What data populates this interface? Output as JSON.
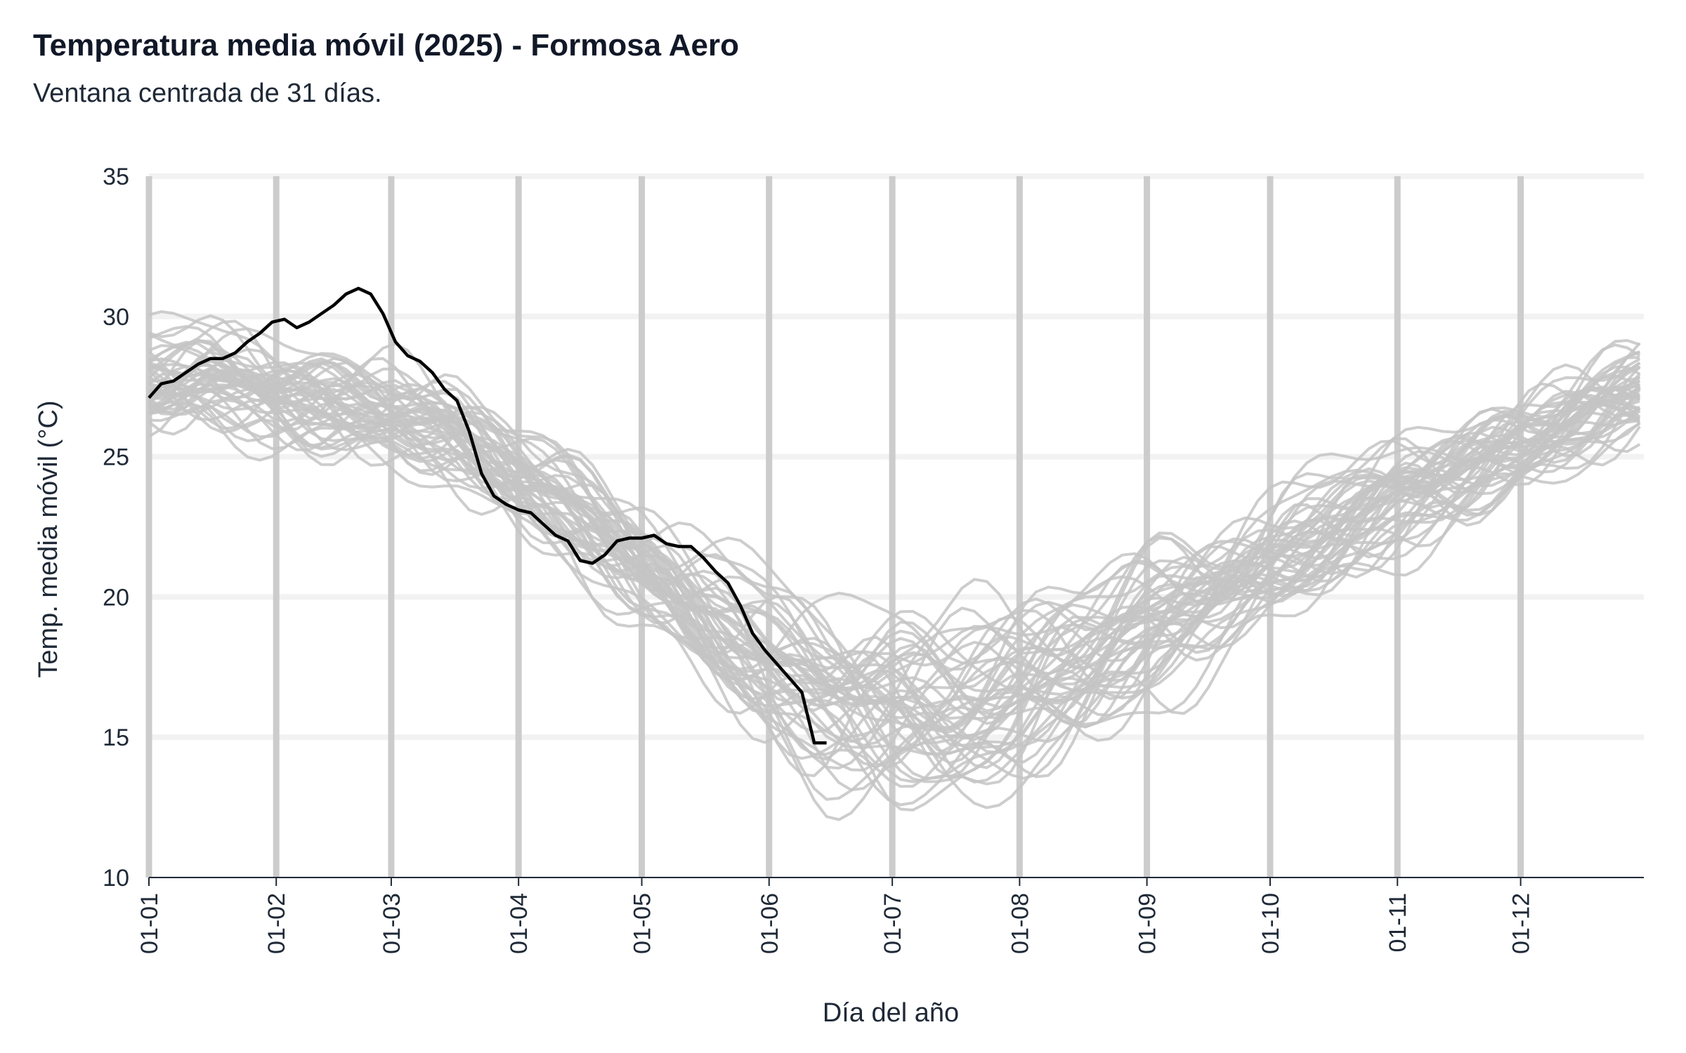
{
  "chart_data": {
    "type": "line",
    "title": "Temperatura media móvil (2025) - Formosa Aero",
    "subtitle": "Ventana centrada de 31 días.",
    "xlabel": "Día del año",
    "ylabel": "Temp. media móvil (°C)",
    "ylim": [
      10,
      35
    ],
    "yticks": [
      10,
      15,
      20,
      25,
      30,
      35
    ],
    "xlim": [
      1,
      365
    ],
    "xticks": [
      {
        "label": "01-01",
        "doy": 1
      },
      {
        "label": "01-02",
        "doy": 32
      },
      {
        "label": "01-03",
        "doy": 60
      },
      {
        "label": "01-04",
        "doy": 91
      },
      {
        "label": "01-05",
        "doy": 121
      },
      {
        "label": "01-06",
        "doy": 152
      },
      {
        "label": "01-07",
        "doy": 182
      },
      {
        "label": "01-08",
        "doy": 213
      },
      {
        "label": "01-09",
        "doy": 244
      },
      {
        "label": "01-10",
        "doy": 274
      },
      {
        "label": "01-11",
        "doy": 305
      },
      {
        "label": "01-12",
        "doy": 335
      }
    ],
    "grid": true,
    "colors": {
      "highlight": "#000000",
      "history": "#c4c4c4",
      "grid": "#f2f2f2",
      "vline": "#cccccc"
    },
    "climatology": {
      "doy": [
        1,
        15,
        32,
        45,
        60,
        75,
        91,
        105,
        121,
        135,
        152,
        165,
        182,
        195,
        213,
        230,
        244,
        260,
        274,
        290,
        305,
        320,
        335,
        350,
        365
      ],
      "values": [
        27.6,
        27.9,
        27.4,
        27.0,
        26.7,
        25.8,
        24.2,
        22.8,
        21.0,
        19.2,
        17.6,
        16.6,
        16.5,
        16.2,
        16.7,
        17.6,
        18.8,
        19.9,
        21.0,
        22.4,
        23.7,
        24.6,
        25.6,
        26.6,
        27.4
      ]
    },
    "history_years": 50,
    "series": [
      {
        "name": "2025",
        "x": [
          1,
          4,
          7,
          10,
          13,
          16,
          19,
          22,
          25,
          28,
          31,
          34,
          37,
          40,
          43,
          46,
          49,
          52,
          55,
          58,
          61,
          64,
          67,
          70,
          73,
          76,
          79,
          82,
          85,
          88,
          91,
          94,
          97,
          100,
          103,
          106,
          109,
          112,
          115,
          118,
          121,
          124,
          127,
          130,
          133,
          136,
          139,
          142,
          145,
          148,
          151,
          154,
          157,
          160,
          163,
          166
        ],
        "values": [
          27.1,
          27.6,
          27.7,
          28.0,
          28.3,
          28.5,
          28.5,
          28.7,
          29.1,
          29.4,
          29.8,
          29.9,
          29.6,
          29.8,
          30.1,
          30.4,
          30.8,
          31.0,
          30.8,
          30.1,
          29.1,
          28.6,
          28.4,
          28.0,
          27.4,
          27.0,
          25.9,
          24.4,
          23.6,
          23.3,
          23.1,
          23.0,
          22.6,
          22.2,
          22.0,
          21.3,
          21.2,
          21.5,
          22.0,
          22.1,
          22.1,
          22.2,
          21.9,
          21.8,
          21.8,
          21.4,
          20.9,
          20.5,
          19.7,
          18.7,
          18.1,
          17.6,
          17.1,
          16.6,
          14.8,
          14.8
        ]
      }
    ]
  }
}
